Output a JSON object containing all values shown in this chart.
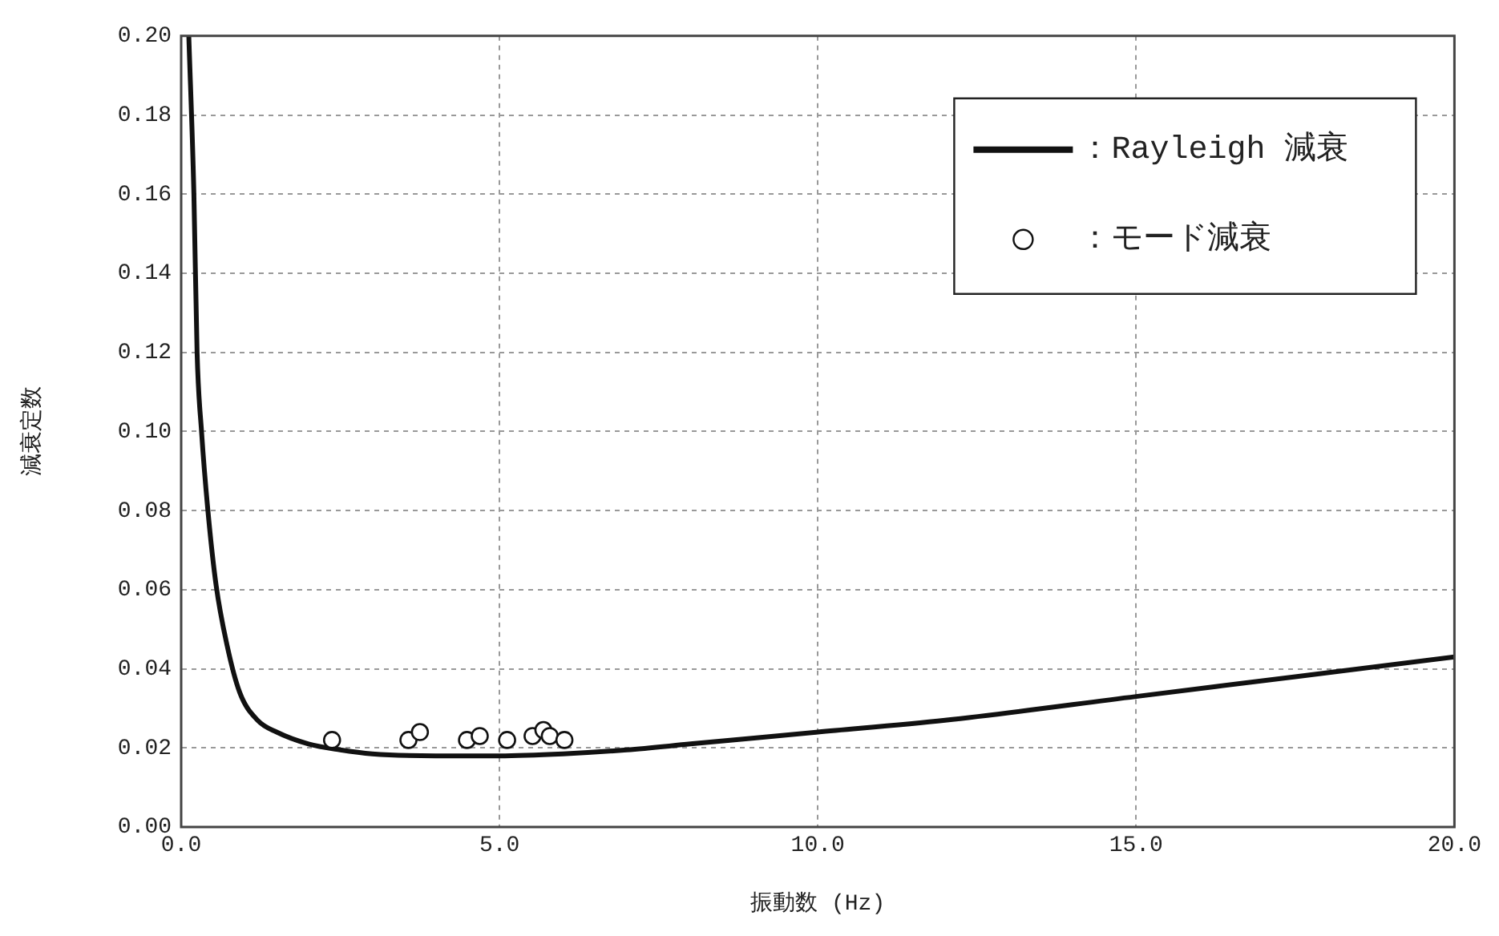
{
  "chart_data": {
    "type": "line",
    "xlabel": "振動数 (Hz)",
    "ylabel": "減衰定数",
    "xlim": [
      0,
      20
    ],
    "xticks": [
      {
        "value": 0,
        "label": "0.0"
      },
      {
        "value": 5,
        "label": "5.0"
      },
      {
        "value": 10,
        "label": "10.0"
      },
      {
        "value": 15,
        "label": "15.0"
      },
      {
        "value": 20,
        "label": "20.0"
      }
    ],
    "ylim": [
      0,
      0.2
    ],
    "yticks": [
      {
        "value": 0,
        "label": "0.00"
      },
      {
        "value": 0.02,
        "label": "0.02"
      },
      {
        "value": 0.04,
        "label": "0.04"
      },
      {
        "value": 0.06,
        "label": "0.06"
      },
      {
        "value": 0.08,
        "label": "0.08"
      },
      {
        "value": 0.1,
        "label": "0.10"
      },
      {
        "value": 0.12,
        "label": "0.12"
      },
      {
        "value": 0.14,
        "label": "0.14"
      },
      {
        "value": 0.16,
        "label": "0.16"
      },
      {
        "value": 0.18,
        "label": "0.18"
      },
      {
        "value": 0.2,
        "label": "0.20"
      }
    ],
    "grid": true,
    "legend": "top right",
    "series": [
      {
        "name": "：Rayleigh 減衰",
        "type": "line",
        "color": "#111111",
        "line_style": "solid",
        "marker": "none",
        "x": [
          0.12,
          0.2,
          0.25,
          0.32,
          0.42,
          0.55,
          0.72,
          0.92,
          1.2,
          1.5,
          2,
          2.5,
          3,
          4,
          5,
          6,
          7,
          8,
          10,
          12,
          15,
          17.5,
          20
        ],
        "values": [
          0.2,
          0.16,
          0.12,
          0.1,
          0.08,
          0.061,
          0.046,
          0.034,
          0.027,
          0.024,
          0.021,
          0.0195,
          0.0185,
          0.018,
          0.018,
          0.0185,
          0.0195,
          0.021,
          0.024,
          0.027,
          0.033,
          0.038,
          0.043
        ]
      },
      {
        "name": "：モード減衰",
        "type": "scatter",
        "color": "#111111",
        "marker": "circle",
        "x": [
          2.37,
          3.57,
          3.75,
          4.49,
          4.69,
          5.12,
          5.52,
          5.69,
          5.79,
          6.02
        ],
        "values": [
          0.022,
          0.022,
          0.024,
          0.022,
          0.023,
          0.022,
          0.023,
          0.0245,
          0.023,
          0.022
        ]
      }
    ]
  }
}
